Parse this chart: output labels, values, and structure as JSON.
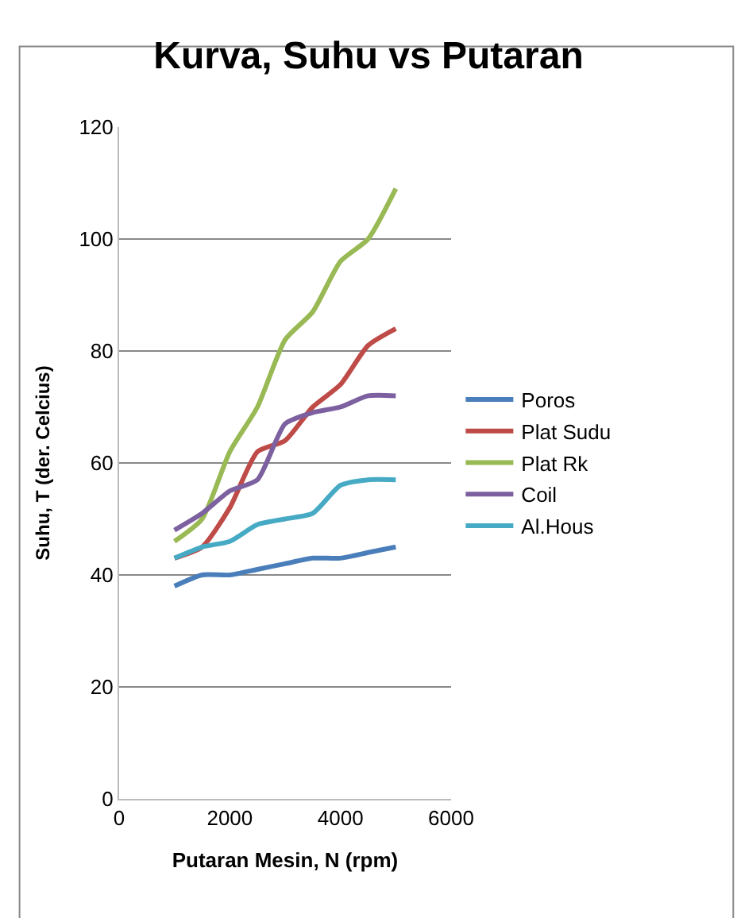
{
  "chart_data": {
    "type": "line",
    "title": "Kurva, Suhu vs Putaran",
    "xlabel": "Putaran Mesin, N (rpm)",
    "ylabel": "Suhu, T (der. Celcius)",
    "x": [
      1000,
      1500,
      2000,
      2500,
      3000,
      3500,
      4000,
      4500,
      5000
    ],
    "series": [
      {
        "name": "Poros",
        "color": "#4a7ebb",
        "values": [
          38,
          40,
          40,
          41,
          42,
          43,
          43,
          44,
          45
        ]
      },
      {
        "name": "Plat Sudu",
        "color": "#be4b48",
        "values": [
          43,
          45,
          52,
          62,
          64,
          70,
          74,
          81,
          84
        ]
      },
      {
        "name": "Plat Rk",
        "color": "#98b954",
        "values": [
          46,
          50,
          62,
          70,
          82,
          87,
          96,
          100,
          109
        ]
      },
      {
        "name": "Coil",
        "color": "#7d60a0",
        "values": [
          48,
          51,
          55,
          57,
          67,
          69,
          70,
          72,
          72
        ]
      },
      {
        "name": "Al.Hous",
        "color": "#46aac5",
        "values": [
          43,
          45,
          46,
          49,
          50,
          51,
          56,
          57,
          57
        ]
      }
    ],
    "xlim": [
      0,
      6000
    ],
    "xticks": [
      0,
      2000,
      4000,
      6000
    ],
    "ylim": [
      0,
      120
    ],
    "yticks": [
      0,
      20,
      40,
      60,
      80,
      100,
      120
    ],
    "grid": "y",
    "legend": "right",
    "marker": "none",
    "line_style": "solid"
  }
}
